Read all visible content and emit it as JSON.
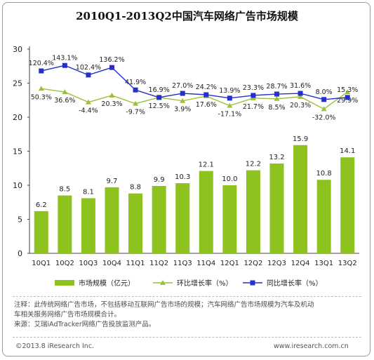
{
  "chart_data": {
    "type": "bar",
    "title": "2010Q1-2013Q2中国汽车网络广告市场规模",
    "categories": [
      "10Q1",
      "10Q2",
      "10Q3",
      "10Q4",
      "11Q1",
      "11Q2",
      "11Q3",
      "11Q4",
      "12Q1",
      "12Q2",
      "12Q3",
      "12Q4",
      "13Q1",
      "13Q2"
    ],
    "ylim": [
      0,
      30
    ],
    "yticks": [
      "0",
      "5",
      "10",
      "15",
      "20",
      "25",
      "30"
    ],
    "grid": false,
    "legend_position": "bottom",
    "series": [
      {
        "name": "市场规模（亿元）",
        "kind": "bar",
        "color": "#8DC21F",
        "values": [
          6.2,
          8.5,
          8.1,
          9.7,
          8.8,
          9.9,
          10.3,
          12.1,
          10.0,
          12.2,
          13.2,
          15.9,
          10.8,
          14.1
        ],
        "labels": [
          "6.2",
          "8.5",
          "8.1",
          "9.7",
          "8.8",
          "9.9",
          "10.3",
          "12.1",
          "10.0",
          "12.2",
          "13.2",
          "15.9",
          "10.8",
          "14.1"
        ]
      },
      {
        "name": "环比增长率（%）",
        "kind": "line",
        "color": "#9CC03A",
        "plot_y": [
          24.2,
          23.7,
          22.2,
          23.2,
          22.0,
          22.9,
          22.4,
          23.1,
          21.7,
          22.8,
          22.7,
          23.0,
          21.2,
          23.7
        ],
        "labels": [
          "50.3%",
          "36.6%",
          "-4.4%",
          "20.3%",
          "-9.7%",
          "12.5%",
          "3.9%",
          "17.6%",
          "-17.1%",
          "21.7%",
          "8.5%",
          "20.3%",
          "-32.0%",
          "29.9%"
        ]
      },
      {
        "name": "同比增长率（%）",
        "kind": "line",
        "color": "#2430C8",
        "plot_y": [
          26.8,
          27.6,
          26.2,
          27.3,
          24.0,
          22.9,
          23.5,
          23.3,
          22.8,
          23.2,
          23.4,
          23.5,
          22.6,
          22.9
        ],
        "labels": [
          "120.4%",
          "143.1%",
          "102.4%",
          "136.2%",
          "41.9%",
          "16.9%",
          "27.0%",
          "24.2%",
          "13.9%",
          "23.3%",
          "28.7%",
          "31.6%",
          "8.0%",
          "15.3%"
        ]
      }
    ]
  },
  "notes": {
    "line1": "注释：此传统网络广告市场，不包括移动互联网广告市场的规模；汽车网络广告市场规模为汽车及机动",
    "line2": "车相关服务网络广告市场规模合计。",
    "line3": "来源：艾瑞iAdTracker网络广告投放监测产品。"
  },
  "footer": {
    "copyright": "©2013.8 iResearch Inc.",
    "url": "www.iresearch.com.cn"
  }
}
